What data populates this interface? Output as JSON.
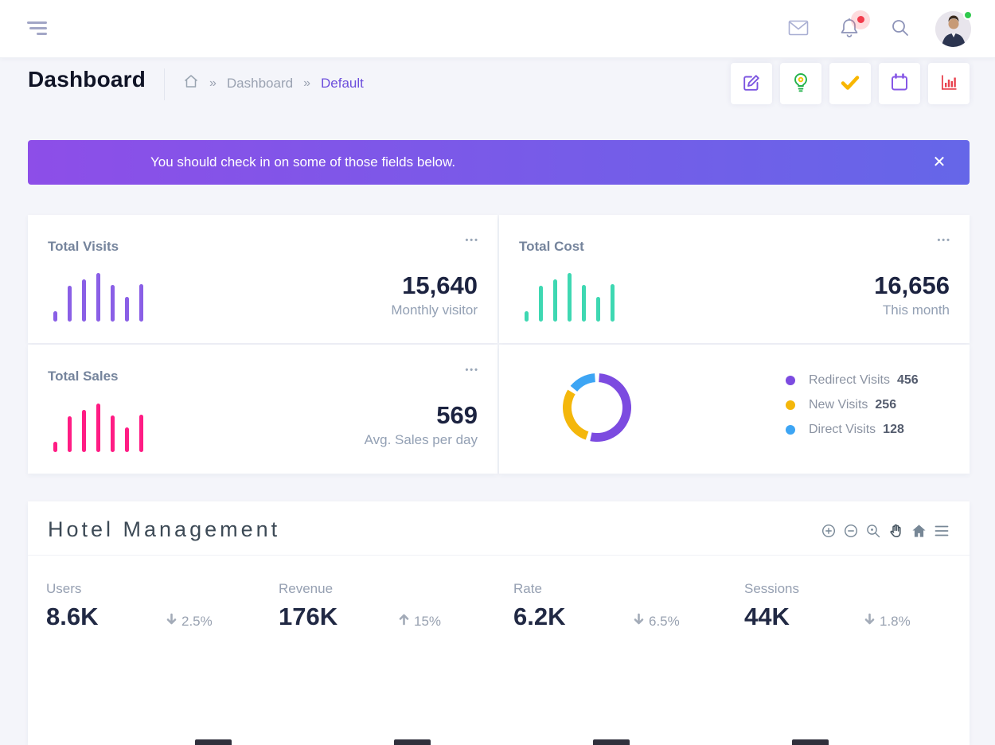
{
  "navbar": {
    "icons": [
      "mail",
      "notifications",
      "search"
    ],
    "notification_badge": true,
    "avatar_status": "online"
  },
  "page_header": {
    "title": "Dashboard",
    "breadcrumb": {
      "separator": "»",
      "items": [
        {
          "label": "Dashboard"
        },
        {
          "label": "Default"
        }
      ]
    },
    "actions": [
      {
        "name": "edit",
        "color": "#7c55e0"
      },
      {
        "name": "idea",
        "color": "#23b24b"
      },
      {
        "name": "done",
        "color": "#f8b600"
      },
      {
        "name": "calendar",
        "color": "#8657e6"
      },
      {
        "name": "analytics",
        "color": "#e8414d"
      }
    ]
  },
  "alert": {
    "text": "You should check in on some of those fields below.",
    "close_label": "✕",
    "gradient": [
      "#8d4ee8",
      "#6566e8"
    ]
  },
  "menu_dots": "•••",
  "stat_cards": [
    {
      "title": "Total Visits",
      "value": "15,640",
      "caption": "Monthly visitor",
      "color": "#8a5fe6",
      "bars": [
        13,
        45,
        53,
        61,
        46,
        31,
        47
      ]
    },
    {
      "title": "Total Cost",
      "value": "16,656",
      "caption": "This month",
      "color": "#3ed8b2",
      "bars": [
        13,
        45,
        53,
        61,
        46,
        31,
        47
      ]
    },
    {
      "title": "Total Sales",
      "value": "569",
      "caption": "Avg. Sales per day",
      "color": "#ff1c84",
      "bars": [
        13,
        45,
        53,
        61,
        46,
        31,
        47
      ]
    }
  ],
  "donut_card": {
    "series": [
      {
        "label": "Redirect Visits",
        "value": 456,
        "color": "#7c4be0"
      },
      {
        "label": "New Visits",
        "value": 256,
        "color": "#f4b70b"
      },
      {
        "label": "Direct Visits",
        "value": 128,
        "color": "#3da5f4"
      }
    ]
  },
  "hotel_card": {
    "title": "Hotel Management",
    "toolbar": [
      "zoom-in",
      "zoom-out",
      "selection-zoom",
      "pan",
      "reset-home",
      "menu"
    ],
    "stats": [
      {
        "label": "Users",
        "value": "8.6K",
        "delta": "2.5%",
        "direction": "down"
      },
      {
        "label": "Revenue",
        "value": "176K",
        "delta": "15%",
        "direction": "up"
      },
      {
        "label": "Rate",
        "value": "6.2K",
        "delta": "6.5%",
        "direction": "down"
      },
      {
        "label": "Sessions",
        "value": "44K",
        "delta": "1.8%",
        "direction": "down"
      }
    ],
    "bottom_bar_color": "#30303c"
  },
  "chart_data": [
    {
      "type": "bar",
      "name": "total-visits-sparkline",
      "values": [
        13,
        45,
        53,
        61,
        46,
        31,
        47
      ],
      "color": "#8a5fe6"
    },
    {
      "type": "bar",
      "name": "total-cost-sparkline",
      "values": [
        13,
        45,
        53,
        61,
        46,
        31,
        47
      ],
      "color": "#3ed8b2"
    },
    {
      "type": "bar",
      "name": "total-sales-sparkline",
      "values": [
        13,
        45,
        53,
        61,
        46,
        31,
        47
      ],
      "color": "#ff1c84"
    },
    {
      "type": "pie",
      "name": "visits-donut",
      "categories": [
        "Redirect Visits",
        "New Visits",
        "Direct Visits"
      ],
      "values": [
        456,
        256,
        128
      ],
      "colors": [
        "#7c4be0",
        "#f4b70b",
        "#3da5f4"
      ],
      "legend_position": "right"
    }
  ]
}
